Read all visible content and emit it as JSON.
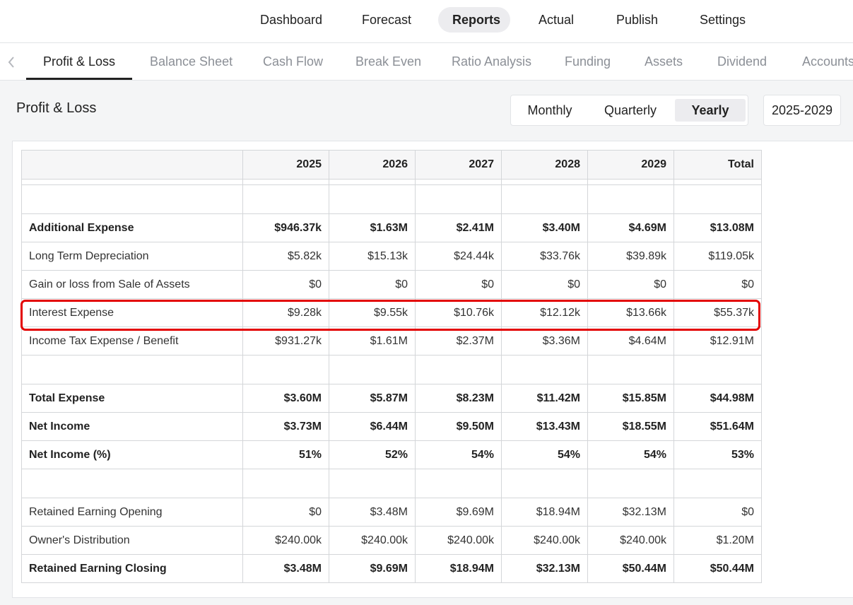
{
  "top_nav": {
    "items": [
      {
        "label": "Dashboard"
      },
      {
        "label": "Forecast"
      },
      {
        "label": "Reports",
        "active": true
      },
      {
        "label": "Actual"
      },
      {
        "label": "Publish"
      },
      {
        "label": "Settings"
      }
    ]
  },
  "sub_tabs": {
    "items": [
      {
        "label": "Profit & Loss",
        "active": true
      },
      {
        "label": "Balance Sheet"
      },
      {
        "label": "Cash Flow"
      },
      {
        "label": "Break Even"
      },
      {
        "label": "Ratio Analysis"
      },
      {
        "label": "Funding"
      },
      {
        "label": "Assets"
      },
      {
        "label": "Dividend"
      },
      {
        "label": "Accounts"
      }
    ]
  },
  "page": {
    "title": "Profit & Loss",
    "period_options": [
      {
        "label": "Monthly"
      },
      {
        "label": "Quarterly"
      },
      {
        "label": "Yearly",
        "active": true
      }
    ],
    "range": "2025-2029"
  },
  "table": {
    "columns": [
      "",
      "2025",
      "2026",
      "2027",
      "2028",
      "2029",
      "Total"
    ],
    "rows": [
      {
        "label": "Additional Expense",
        "bold": true,
        "values": [
          "$946.37k",
          "$1.63M",
          "$2.41M",
          "$3.40M",
          "$4.69M",
          "$13.08M"
        ]
      },
      {
        "label": "Long Term Depreciation",
        "values": [
          "$5.82k",
          "$15.13k",
          "$24.44k",
          "$33.76k",
          "$39.89k",
          "$119.05k"
        ]
      },
      {
        "label": "Gain or loss from Sale of Assets",
        "values": [
          "$0",
          "$0",
          "$0",
          "$0",
          "$0",
          "$0"
        ]
      },
      {
        "label": "Interest Expense",
        "highlighted": true,
        "values": [
          "$9.28k",
          "$9.55k",
          "$10.76k",
          "$12.12k",
          "$13.66k",
          "$55.37k"
        ]
      },
      {
        "label": "Income Tax Expense / Benefit",
        "values": [
          "$931.27k",
          "$1.61M",
          "$2.37M",
          "$3.36M",
          "$4.64M",
          "$12.91M"
        ]
      },
      {
        "label": "Total Expense",
        "bold": true,
        "values": [
          "$3.60M",
          "$5.87M",
          "$8.23M",
          "$11.42M",
          "$15.85M",
          "$44.98M"
        ]
      },
      {
        "label": "Net Income",
        "bold": true,
        "values": [
          "$3.73M",
          "$6.44M",
          "$9.50M",
          "$13.43M",
          "$18.55M",
          "$51.64M"
        ]
      },
      {
        "label": "Net Income (%)",
        "bold": true,
        "values": [
          "51%",
          "52%",
          "54%",
          "54%",
          "54%",
          "53%"
        ]
      },
      {
        "label": "Retained Earning Opening",
        "values": [
          "$0",
          "$3.48M",
          "$9.69M",
          "$18.94M",
          "$32.13M",
          "$0"
        ]
      },
      {
        "label": "Owner's Distribution",
        "values": [
          "$240.00k",
          "$240.00k",
          "$240.00k",
          "$240.00k",
          "$240.00k",
          "$1.20M"
        ]
      },
      {
        "label": "Retained Earning Closing",
        "bold": true,
        "values": [
          "$3.48M",
          "$9.69M",
          "$18.94M",
          "$32.13M",
          "$50.44M",
          "$50.44M"
        ]
      }
    ]
  },
  "colors": {
    "highlight": "#e30000",
    "active_pill": "#ececef"
  }
}
